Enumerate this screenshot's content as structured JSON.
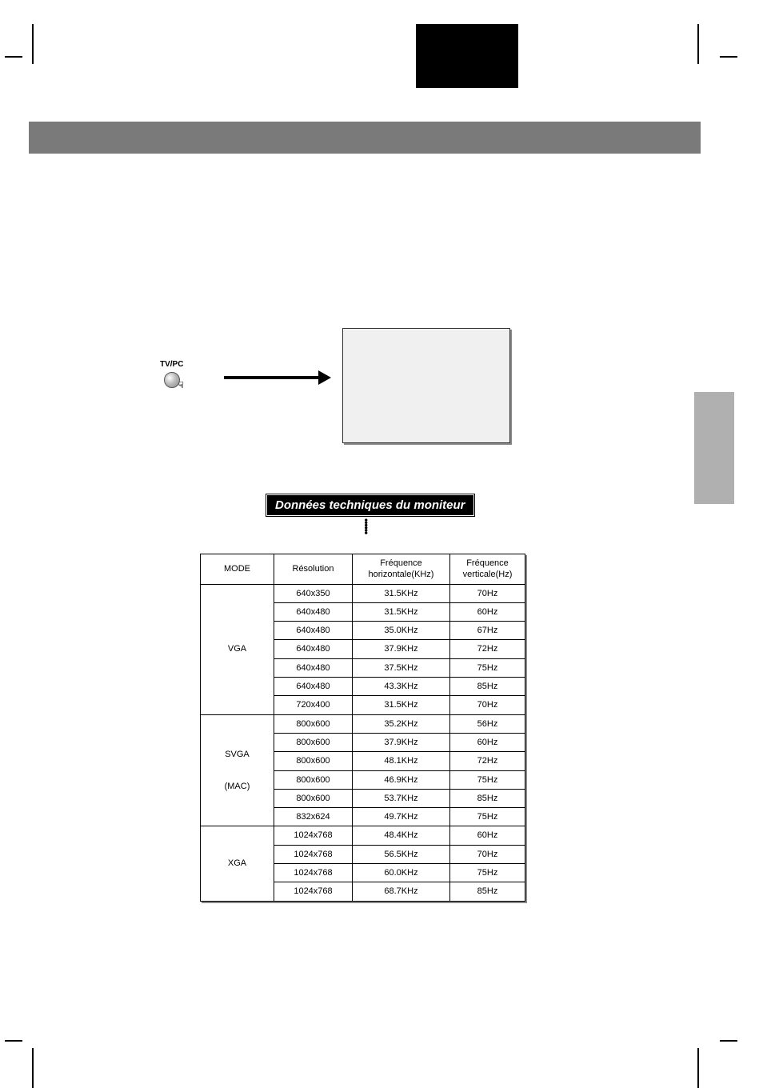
{
  "tvpc_label": "TV/PC",
  "title": "Données techniques du moniteur",
  "table": {
    "headers": {
      "mode": "MODE",
      "resolution": "Résolution",
      "hfreq": "Fréquence horizontale(KHz)",
      "vfreq": "Fréquence verticale(Hz)"
    },
    "groups": [
      {
        "mode": "VGA",
        "mode_extra": "",
        "rows": [
          {
            "res": "640x350",
            "hf": "31.5KHz",
            "vf": "70Hz"
          },
          {
            "res": "640x480",
            "hf": "31.5KHz",
            "vf": "60Hz"
          },
          {
            "res": "640x480",
            "hf": "35.0KHz",
            "vf": "67Hz"
          },
          {
            "res": "640x480",
            "hf": "37.9KHz",
            "vf": "72Hz"
          },
          {
            "res": "640x480",
            "hf": "37.5KHz",
            "vf": "75Hz"
          },
          {
            "res": "640x480",
            "hf": "43.3KHz",
            "vf": "85Hz"
          },
          {
            "res": "720x400",
            "hf": "31.5KHz",
            "vf": "70Hz"
          }
        ]
      },
      {
        "mode": "SVGA",
        "mode_extra": "(MAC)",
        "rows": [
          {
            "res": "800x600",
            "hf": "35.2KHz",
            "vf": "56Hz"
          },
          {
            "res": "800x600",
            "hf": "37.9KHz",
            "vf": "60Hz"
          },
          {
            "res": "800x600",
            "hf": "48.1KHz",
            "vf": "72Hz"
          },
          {
            "res": "800x600",
            "hf": "46.9KHz",
            "vf": "75Hz"
          },
          {
            "res": "800x600",
            "hf": "53.7KHz",
            "vf": "85Hz"
          },
          {
            "res": "832x624",
            "hf": "49.7KHz",
            "vf": "75Hz"
          }
        ]
      },
      {
        "mode": "XGA",
        "mode_extra": "",
        "rows": [
          {
            "res": "1024x768",
            "hf": "48.4KHz",
            "vf": "60Hz"
          },
          {
            "res": "1024x768",
            "hf": "56.5KHz",
            "vf": "70Hz"
          },
          {
            "res": "1024x768",
            "hf": "60.0KHz",
            "vf": "75Hz"
          },
          {
            "res": "1024x768",
            "hf": "68.7KHz",
            "vf": "85Hz"
          }
        ]
      }
    ]
  },
  "colors": {
    "grey_bar": "#7a7a7a",
    "side_tab": "#b0b0b0",
    "box_bg": "#f0f0f0",
    "black": "#000000",
    "white": "#ffffff",
    "shadow": "#888888"
  }
}
